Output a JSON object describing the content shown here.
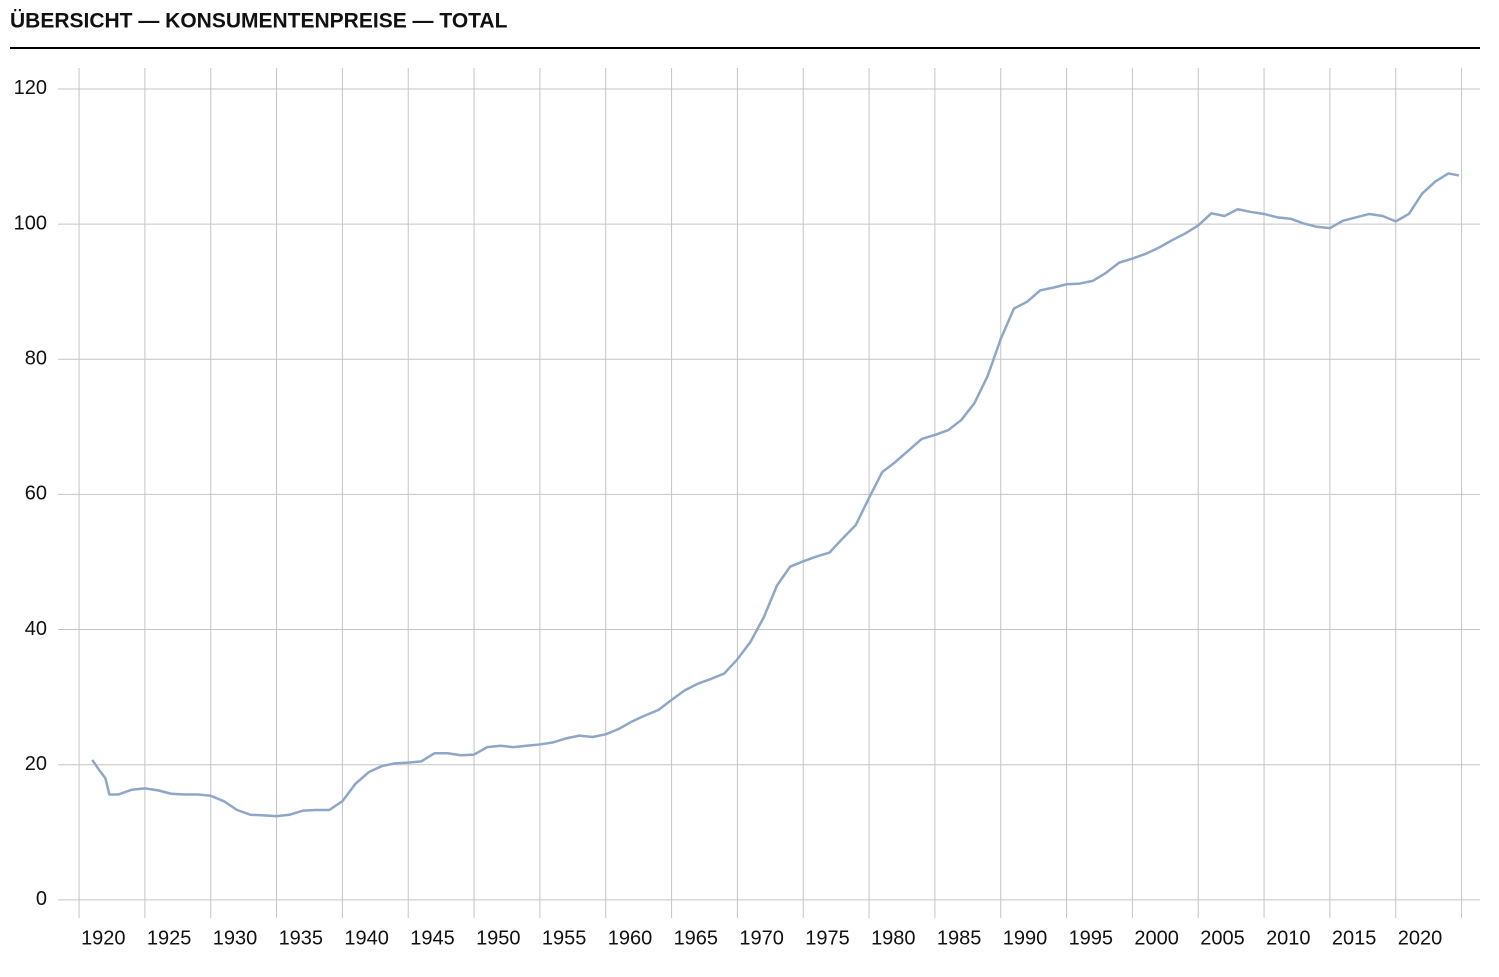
{
  "chart_data": {
    "type": "line",
    "title": "ÜBERSICHT — KONSUMENTENPREISE — TOTAL",
    "x": [
      1921,
      1921.5,
      1922,
      1922.3,
      1923,
      1924,
      1925,
      1926,
      1927,
      1928,
      1929,
      1930,
      1931,
      1932,
      1933,
      1934,
      1935,
      1936,
      1937,
      1938,
      1939,
      1940,
      1941,
      1942,
      1943,
      1944,
      1945,
      1946,
      1947,
      1948,
      1949,
      1950,
      1951,
      1952,
      1953,
      1954,
      1955,
      1956,
      1957,
      1958,
      1959,
      1960,
      1961,
      1962,
      1963,
      1964,
      1965,
      1966,
      1967,
      1968,
      1969,
      1970,
      1971,
      1972,
      1973,
      1974,
      1975,
      1976,
      1977,
      1978,
      1979,
      1980,
      1981,
      1982,
      1983,
      1984,
      1985,
      1986,
      1987,
      1988,
      1989,
      1990,
      1991,
      1992,
      1993,
      1994,
      1995,
      1996,
      1997,
      1998,
      1999,
      2000,
      2001,
      2002,
      2003,
      2004,
      2005,
      2006,
      2007,
      2008,
      2009,
      2010,
      2011,
      2012,
      2013,
      2014,
      2015,
      2016,
      2017,
      2018,
      2019,
      2020,
      2021,
      2022,
      2023,
      2024,
      2024.8
    ],
    "series": [
      {
        "color": "#8fa6c8",
        "values": [
          20.7,
          19.3,
          18,
          15.6,
          15.6,
          16.3,
          16.5,
          16.2,
          15.7,
          15.6,
          15.6,
          15.4,
          14.6,
          13.3,
          12.6,
          12.5,
          12.4,
          12.6,
          13.2,
          13.3,
          13.3,
          14.6,
          17.2,
          18.9,
          19.8,
          20.2,
          20.3,
          20.5,
          21.7,
          21.7,
          21.4,
          21.5,
          22.6,
          22.8,
          22.6,
          22.8,
          23,
          23.3,
          23.9,
          24.3,
          24.1,
          24.5,
          25.3,
          26.4,
          27.3,
          28.1,
          29.6,
          31,
          32,
          32.7,
          33.5,
          35.6,
          38.2,
          41.8,
          46.5,
          49.3,
          50.1,
          50.8,
          51.4,
          53.5,
          55.5,
          59.5,
          63.3,
          64.8,
          66.5,
          68.2,
          68.8,
          69.5,
          71,
          73.5,
          77.5,
          83,
          87.5,
          88.5,
          90.2,
          90.6,
          91.1,
          91.2,
          91.6,
          92.8,
          94.3,
          94.9,
          95.6,
          96.5,
          97.6,
          98.6,
          99.8,
          101.6,
          101.2,
          102.2,
          101.8,
          101.5,
          101.0,
          100.8,
          100.1,
          99.6,
          99.4,
          100.5,
          101.0,
          101.5,
          101.2,
          100.4,
          101.5,
          104.5,
          106.3,
          107.5,
          107.2
        ]
      }
    ],
    "xlim": [
      1918.4,
      2026.4
    ],
    "xticks": [
      1920,
      1925,
      1930,
      1935,
      1940,
      1945,
      1950,
      1955,
      1960,
      1965,
      1970,
      1975,
      1980,
      1985,
      1990,
      1995,
      2000,
      2005,
      2010,
      2015,
      2020,
      {
        "value": 2025,
        "label": null
      }
    ],
    "ylim": [
      -1.5,
      123.1
    ],
    "yticks": [
      0,
      20,
      40,
      60,
      80,
      100,
      120
    ],
    "grid": true
  }
}
